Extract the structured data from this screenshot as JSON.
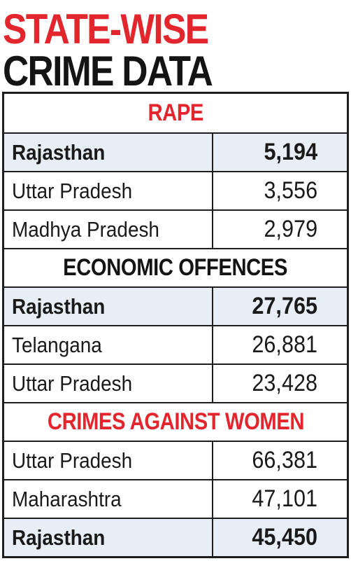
{
  "title_line_1": "STATE-WISE",
  "title_line_2": "CRIME DATA",
  "colors": {
    "accent_red": "#e3262d",
    "dark": "#141414",
    "row_shade": "#e8eef5"
  },
  "chart_data": {
    "type": "table",
    "sections": [
      {
        "heading": "RAPE",
        "heading_color": "#e3262d",
        "rows": [
          {
            "state": "Rajasthan",
            "value": "5,194",
            "highlight": true
          },
          {
            "state": "Uttar Pradesh",
            "value": "3,556",
            "highlight": false
          },
          {
            "state": "Madhya Pradesh",
            "value": "2,979",
            "highlight": false
          }
        ]
      },
      {
        "heading": "ECONOMIC OFFENCES",
        "heading_color": "#141414",
        "rows": [
          {
            "state": "Rajasthan",
            "value": "27,765",
            "highlight": true
          },
          {
            "state": "Telangana",
            "value": "26,881",
            "highlight": false
          },
          {
            "state": "Uttar Pradesh",
            "value": "23,428",
            "highlight": false
          }
        ]
      },
      {
        "heading": "CRIMES AGAINST WOMEN",
        "heading_color": "#e3262d",
        "rows": [
          {
            "state": "Uttar Pradesh",
            "value": "66,381",
            "highlight": false
          },
          {
            "state": "Maharashtra",
            "value": "47,101",
            "highlight": false
          },
          {
            "state": "Rajasthan",
            "value": "45,450",
            "highlight": true
          }
        ]
      }
    ]
  }
}
